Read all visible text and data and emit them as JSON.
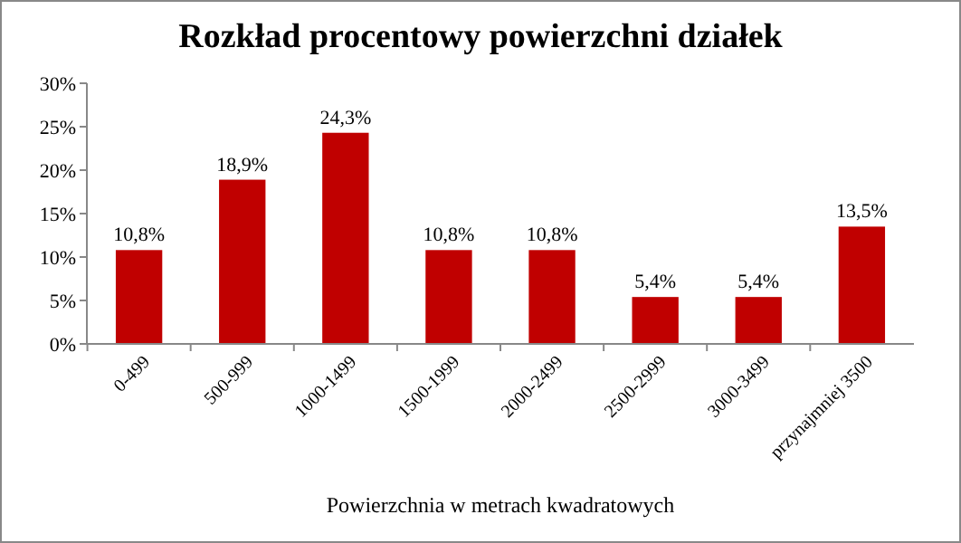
{
  "chart_data": {
    "type": "bar",
    "title": "Rozkład procentowy powierzchni działek",
    "xlabel": "Powierzchnia w metrach kwadratowych",
    "categories": [
      "0-499",
      "500-999",
      "1000-1499",
      "1500-1999",
      "2000-2499",
      "2500-2999",
      "3000-3499",
      "przynajmniej 3500"
    ],
    "values": [
      10.8,
      18.9,
      24.3,
      10.8,
      10.8,
      5.4,
      5.4,
      13.5
    ],
    "value_labels": [
      "10,8%",
      "18,9%",
      "24,3%",
      "10,8%",
      "10,8%",
      "5,4%",
      "5,4%",
      "13,5%"
    ],
    "color": "#c00000",
    "ylim": [
      0,
      30
    ],
    "yticks": [
      {
        "value": 0,
        "label": "0%"
      },
      {
        "value": 5,
        "label": "5%"
      },
      {
        "value": 10,
        "label": "10%"
      },
      {
        "value": 15,
        "label": "15%"
      },
      {
        "value": 20,
        "label": "20%"
      },
      {
        "value": 25,
        "label": "25%"
      },
      {
        "value": 30,
        "label": "30%"
      }
    ],
    "grid": false
  }
}
